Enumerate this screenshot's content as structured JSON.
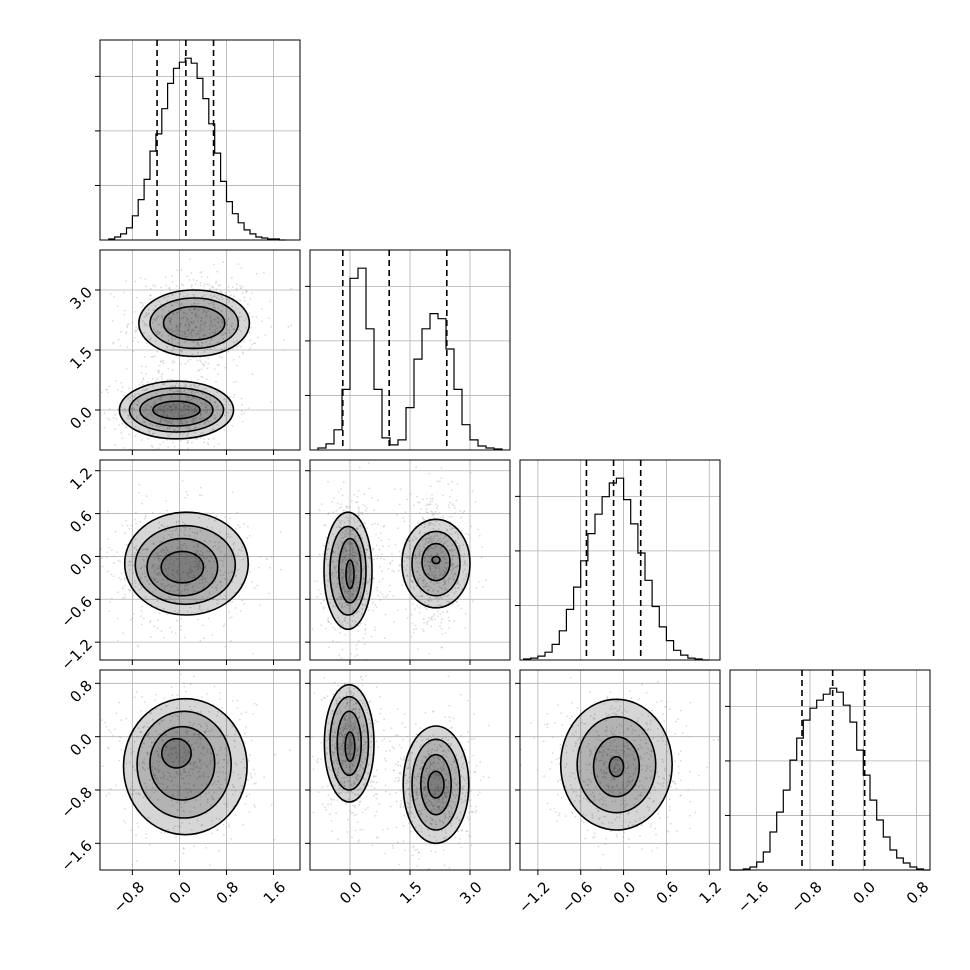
{
  "chart_data": {
    "type": "corner",
    "grid": true,
    "params": [
      {
        "ticks": [
          -0.8,
          0.0,
          0.8,
          1.6
        ],
        "range": [
          -1.35,
          2.05
        ],
        "quantiles": [
          -0.38,
          0.11,
          0.58
        ],
        "hist": {
          "edges": [
            -1.2,
            -1.1,
            -1.0,
            -0.9,
            -0.8,
            -0.7,
            -0.6,
            -0.5,
            -0.4,
            -0.3,
            -0.2,
            -0.1,
            0.0,
            0.1,
            0.2,
            0.3,
            0.4,
            0.5,
            0.6,
            0.7,
            0.8,
            0.9,
            1.0,
            1.1,
            1.2,
            1.3,
            1.4,
            1.5,
            1.6,
            1.7,
            1.8
          ],
          "counts": [
            1,
            3,
            6,
            12,
            24,
            40,
            60,
            88,
            105,
            130,
            155,
            170,
            176,
            180,
            175,
            160,
            140,
            115,
            86,
            58,
            38,
            26,
            17,
            10,
            6,
            3,
            2,
            1,
            1,
            0
          ]
        }
      },
      {
        "ticks": [
          0.0,
          1.5,
          3.0
        ],
        "range": [
          -1.0,
          4.0
        ],
        "quantiles": [
          -0.18,
          0.98,
          2.42
        ],
        "hist": {
          "edges": [
            -0.8,
            -0.6,
            -0.4,
            -0.2,
            0.0,
            0.2,
            0.4,
            0.6,
            0.8,
            1.0,
            1.2,
            1.4,
            1.6,
            1.8,
            2.0,
            2.2,
            2.4,
            2.6,
            2.8,
            3.0,
            3.2,
            3.4,
            3.6,
            3.8
          ],
          "counts": [
            2,
            6,
            20,
            60,
            170,
            180,
            120,
            60,
            12,
            5,
            10,
            42,
            90,
            120,
            135,
            130,
            100,
            60,
            25,
            10,
            4,
            2,
            1
          ]
        }
      },
      {
        "ticks": [
          -1.2,
          -0.6,
          0.0,
          0.6,
          1.2
        ],
        "range": [
          -1.45,
          1.35
        ],
        "quantiles": [
          -0.52,
          -0.14,
          0.24
        ],
        "hist": {
          "edges": [
            -1.4,
            -1.3,
            -1.2,
            -1.1,
            -1.0,
            -0.9,
            -0.8,
            -0.7,
            -0.6,
            -0.5,
            -0.4,
            -0.3,
            -0.2,
            -0.1,
            0.0,
            0.1,
            0.2,
            0.3,
            0.4,
            0.5,
            0.6,
            0.7,
            0.8,
            0.9,
            1.0,
            1.1,
            1.2
          ],
          "counts": [
            1,
            2,
            4,
            8,
            16,
            30,
            52,
            75,
            102,
            130,
            150,
            168,
            182,
            187,
            165,
            140,
            110,
            82,
            55,
            34,
            20,
            10,
            5,
            2,
            1,
            0
          ]
        }
      },
      {
        "ticks": [
          -1.6,
          -0.8,
          0.0,
          0.8
        ],
        "range": [
          -2.0,
          1.0
        ],
        "quantiles": [
          -0.92,
          -0.46,
          0.02
        ],
        "hist": {
          "edges": [
            -2.0,
            -1.9,
            -1.8,
            -1.7,
            -1.6,
            -1.5,
            -1.4,
            -1.3,
            -1.2,
            -1.1,
            -1.0,
            -0.9,
            -0.8,
            -0.7,
            -0.6,
            -0.5,
            -0.4,
            -0.3,
            -0.2,
            -0.1,
            0.0,
            0.1,
            0.2,
            0.3,
            0.4,
            0.5,
            0.6,
            0.7,
            0.8,
            0.9,
            1.0
          ],
          "counts": [
            0,
            0,
            1,
            3,
            8,
            18,
            38,
            58,
            80,
            110,
            132,
            150,
            162,
            170,
            176,
            182,
            178,
            165,
            148,
            120,
            95,
            70,
            50,
            33,
            20,
            12,
            7,
            3,
            1,
            0
          ]
        }
      }
    ],
    "pairs": [
      {
        "row": 1,
        "col": 0,
        "clusters": [
          {
            "center": [
              0.25,
              2.2
            ],
            "spread": [
              0.55,
              0.62
            ]
          },
          {
            "center": [
              -0.05,
              0.0
            ],
            "spread": [
              0.5,
              0.45
            ]
          }
        ],
        "contours": [
          {
            "center": [
              0.25,
              2.17
            ],
            "rx": 0.52,
            "ry": 0.42
          },
          {
            "center": [
              0.25,
              2.17
            ],
            "rx": 0.75,
            "ry": 0.63
          },
          {
            "center": [
              0.25,
              2.17
            ],
            "rx": 0.94,
            "ry": 0.83
          },
          {
            "center": [
              -0.05,
              0.0
            ],
            "rx": 0.4,
            "ry": 0.22
          },
          {
            "center": [
              -0.05,
              0.0
            ],
            "rx": 0.62,
            "ry": 0.4
          },
          {
            "center": [
              -0.05,
              0.0
            ],
            "rx": 0.8,
            "ry": 0.55
          },
          {
            "center": [
              -0.05,
              0.0
            ],
            "rx": 0.97,
            "ry": 0.72
          }
        ]
      },
      {
        "row": 2,
        "col": 0,
        "clusters": [
          {
            "center": [
              0.0,
              -0.15
            ],
            "spread": [
              0.6,
              0.42
            ]
          }
        ],
        "contours": [
          {
            "center": [
              0.05,
              -0.15
            ],
            "rx": 0.36,
            "ry": 0.22
          },
          {
            "center": [
              0.05,
              -0.15
            ],
            "rx": 0.6,
            "ry": 0.4
          },
          {
            "center": [
              0.1,
              -0.12
            ],
            "rx": 0.85,
            "ry": 0.55
          },
          {
            "center": [
              0.12,
              -0.1
            ],
            "rx": 1.05,
            "ry": 0.72
          }
        ]
      },
      {
        "row": 2,
        "col": 1,
        "clusters": [
          {
            "center": [
              0.0,
              -0.15
            ],
            "spread": [
              0.35,
              0.5
            ]
          },
          {
            "center": [
              2.1,
              -0.1
            ],
            "spread": [
              0.5,
              0.45
            ]
          }
        ],
        "contours": [
          {
            "center": [
              0.0,
              -0.25
            ],
            "rx": 0.1,
            "ry": 0.2
          },
          {
            "center": [
              0.0,
              -0.2
            ],
            "rx": 0.28,
            "ry": 0.45
          },
          {
            "center": [
              -0.05,
              -0.2
            ],
            "rx": 0.45,
            "ry": 0.62
          },
          {
            "center": [
              -0.05,
              -0.2
            ],
            "rx": 0.6,
            "ry": 0.82
          },
          {
            "center": [
              2.15,
              -0.05
            ],
            "rx": 0.1,
            "ry": 0.05
          },
          {
            "center": [
              2.15,
              -0.08
            ],
            "rx": 0.35,
            "ry": 0.26
          },
          {
            "center": [
              2.15,
              -0.1
            ],
            "rx": 0.6,
            "ry": 0.45
          },
          {
            "center": [
              2.15,
              -0.1
            ],
            "rx": 0.85,
            "ry": 0.62
          }
        ]
      },
      {
        "row": 3,
        "col": 0,
        "clusters": [
          {
            "center": [
              0.05,
              -0.4
            ],
            "spread": [
              0.6,
              0.55
            ]
          }
        ],
        "contours": [
          {
            "center": [
              -0.05,
              -0.25
            ],
            "rx": 0.25,
            "ry": 0.22
          },
          {
            "center": [
              0.05,
              -0.4
            ],
            "rx": 0.55,
            "ry": 0.55
          },
          {
            "center": [
              0.08,
              -0.42
            ],
            "rx": 0.8,
            "ry": 0.8
          },
          {
            "center": [
              0.1,
              -0.45
            ],
            "rx": 1.05,
            "ry": 1.02
          }
        ]
      },
      {
        "row": 3,
        "col": 1,
        "clusters": [
          {
            "center": [
              0.0,
              -0.15
            ],
            "spread": [
              0.35,
              0.5
            ]
          },
          {
            "center": [
              2.1,
              -0.75
            ],
            "spread": [
              0.5,
              0.5
            ]
          }
        ],
        "contours": [
          {
            "center": [
              0.0,
              -0.15
            ],
            "rx": 0.12,
            "ry": 0.22
          },
          {
            "center": [
              -0.02,
              -0.1
            ],
            "rx": 0.3,
            "ry": 0.48
          },
          {
            "center": [
              -0.02,
              -0.1
            ],
            "rx": 0.48,
            "ry": 0.7
          },
          {
            "center": [
              -0.02,
              -0.1
            ],
            "rx": 0.62,
            "ry": 0.88
          },
          {
            "center": [
              2.15,
              -0.72
            ],
            "rx": 0.2,
            "ry": 0.2
          },
          {
            "center": [
              2.15,
              -0.72
            ],
            "rx": 0.38,
            "ry": 0.45
          },
          {
            "center": [
              2.15,
              -0.72
            ],
            "rx": 0.6,
            "ry": 0.68
          },
          {
            "center": [
              2.15,
              -0.72
            ],
            "rx": 0.82,
            "ry": 0.88
          }
        ]
      },
      {
        "row": 3,
        "col": 2,
        "clusters": [
          {
            "center": [
              -0.1,
              -0.45
            ],
            "spread": [
              0.48,
              0.55
            ]
          }
        ],
        "contours": [
          {
            "center": [
              -0.1,
              -0.45
            ],
            "rx": 0.1,
            "ry": 0.15
          },
          {
            "center": [
              -0.1,
              -0.45
            ],
            "rx": 0.32,
            "ry": 0.45
          },
          {
            "center": [
              -0.1,
              -0.42
            ],
            "rx": 0.55,
            "ry": 0.72
          },
          {
            "center": [
              -0.1,
              -0.42
            ],
            "rx": 0.78,
            "ry": 0.98
          }
        ]
      }
    ]
  }
}
